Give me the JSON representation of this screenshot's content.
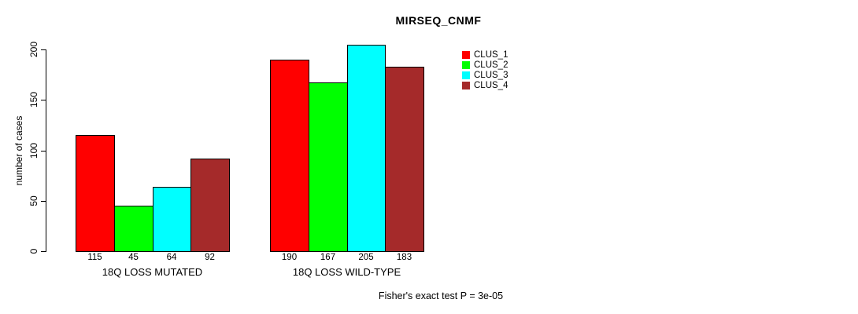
{
  "chart_data": {
    "type": "bar",
    "title": "MIRSEQ_CNMF",
    "ylabel": "number of cases",
    "ylim": [
      0,
      200
    ],
    "yticks": [
      "0",
      "50",
      "100",
      "150",
      "200"
    ],
    "grid": false,
    "legend_position": "top-right",
    "categories": [
      "18Q LOSS MUTATED",
      "18Q LOSS WILD-TYPE"
    ],
    "series": [
      {
        "name": "CLUS_1",
        "color": "#ff0000",
        "values": [
          115,
          190
        ]
      },
      {
        "name": "CLUS_2",
        "color": "#00ff00",
        "values": [
          45,
          167
        ]
      },
      {
        "name": "CLUS_3",
        "color": "#00ffff",
        "values": [
          64,
          205
        ]
      },
      {
        "name": "CLUS_4",
        "color": "#a52a2a",
        "values": [
          92,
          183
        ]
      }
    ],
    "bar_value_labels_shown": true,
    "annotation": "Fisher's exact test P = 3e-05",
    "background_color": "#ffffff",
    "axis_color": "#000000",
    "bar_border_color": "#000000"
  }
}
